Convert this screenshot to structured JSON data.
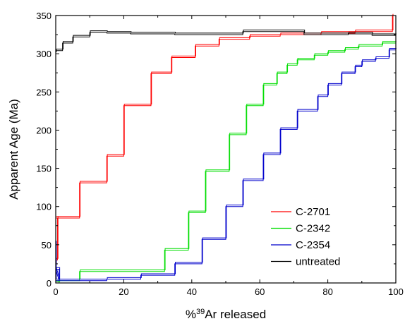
{
  "chart_data": {
    "type": "line",
    "title": "",
    "xlabel": {
      "prefix": "%",
      "sup": "39",
      "suffix": "Ar released"
    },
    "ylabel": "Apparent Age (Ma)",
    "xlim": [
      0,
      100
    ],
    "ylim": [
      0,
      350
    ],
    "xticks": [
      0,
      20,
      40,
      60,
      80,
      100
    ],
    "yticks": [
      0,
      50,
      100,
      150,
      200,
      250,
      300,
      350
    ],
    "grid": false,
    "legend_position": "bottom-right",
    "series": [
      {
        "name": "C-2701",
        "color": "#ff0000",
        "line_style": "step",
        "points": [
          [
            0,
            85
          ],
          [
            1,
            85
          ],
          [
            1,
            85
          ],
          [
            7,
            85
          ],
          [
            7,
            131
          ],
          [
            15,
            131
          ],
          [
            15,
            166
          ],
          [
            20,
            166
          ],
          [
            20,
            232
          ],
          [
            28,
            232
          ],
          [
            28,
            274
          ],
          [
            34,
            274
          ],
          [
            34,
            295
          ],
          [
            41,
            295
          ],
          [
            41,
            310
          ],
          [
            48,
            310
          ],
          [
            48,
            319
          ],
          [
            57,
            319
          ],
          [
            57,
            323
          ],
          [
            66,
            323
          ],
          [
            66,
            325
          ],
          [
            78,
            325
          ],
          [
            78,
            327
          ],
          [
            88,
            327
          ],
          [
            88,
            329
          ],
          [
            99,
            329
          ],
          [
            99,
            350
          ]
        ],
        "start_segment": [
          [
            0,
            23
          ],
          [
            0,
            30
          ],
          [
            0.5,
            30
          ],
          [
            0.5,
            85
          ]
        ]
      },
      {
        "name": "C-2342",
        "color": "#00dd00",
        "line_style": "step",
        "points": [
          [
            0,
            3
          ],
          [
            1,
            3
          ],
          [
            1,
            3
          ],
          [
            7,
            3
          ],
          [
            7,
            15
          ],
          [
            32,
            15
          ],
          [
            32,
            43
          ],
          [
            39,
            43
          ],
          [
            39,
            92
          ],
          [
            44,
            92
          ],
          [
            44,
            146
          ],
          [
            51,
            146
          ],
          [
            51,
            194
          ],
          [
            56,
            194
          ],
          [
            56,
            232
          ],
          [
            61,
            232
          ],
          [
            61,
            259
          ],
          [
            65,
            259
          ],
          [
            65,
            274
          ],
          [
            68,
            274
          ],
          [
            68,
            285
          ],
          [
            71,
            285
          ],
          [
            71,
            292
          ],
          [
            76,
            292
          ],
          [
            76,
            298
          ],
          [
            80,
            298
          ],
          [
            80,
            302
          ],
          [
            85,
            302
          ],
          [
            85,
            306
          ],
          [
            89,
            306
          ],
          [
            89,
            310
          ],
          [
            96,
            310
          ],
          [
            96,
            314
          ],
          [
            100,
            314
          ]
        ],
        "start_segment": [
          [
            0,
            0
          ],
          [
            1,
            0
          ],
          [
            1,
            3
          ]
        ]
      },
      {
        "name": "C-2354",
        "color": "#0000cc",
        "line_style": "step",
        "points": [
          [
            0,
            18
          ],
          [
            1,
            18
          ],
          [
            1,
            3
          ],
          [
            15,
            3
          ],
          [
            15,
            5
          ],
          [
            25,
            5
          ],
          [
            25,
            10
          ],
          [
            35,
            10
          ],
          [
            35,
            25
          ],
          [
            43,
            25
          ],
          [
            43,
            57
          ],
          [
            50,
            57
          ],
          [
            50,
            100
          ],
          [
            55,
            100
          ],
          [
            55,
            134
          ],
          [
            61,
            134
          ],
          [
            61,
            168
          ],
          [
            66,
            168
          ],
          [
            66,
            201
          ],
          [
            71,
            201
          ],
          [
            71,
            225
          ],
          [
            77,
            225
          ],
          [
            77,
            244
          ],
          [
            80,
            244
          ],
          [
            80,
            259
          ],
          [
            84,
            259
          ],
          [
            84,
            274
          ],
          [
            88,
            274
          ],
          [
            88,
            283
          ],
          [
            90,
            283
          ],
          [
            90,
            290
          ],
          [
            94,
            290
          ],
          [
            94,
            294
          ],
          [
            98,
            294
          ],
          [
            98,
            305
          ],
          [
            100,
            305
          ]
        ],
        "start_segment": [
          [
            0,
            53
          ],
          [
            0,
            3
          ],
          [
            1,
            3
          ]
        ]
      },
      {
        "name": "untreated",
        "color": "#000000",
        "line_style": "step",
        "points": [
          [
            0,
            304
          ],
          [
            2,
            304
          ],
          [
            2,
            314
          ],
          [
            5,
            314
          ],
          [
            5,
            322
          ],
          [
            10,
            322
          ],
          [
            10,
            328
          ],
          [
            15,
            328
          ],
          [
            15,
            327
          ],
          [
            22,
            327
          ],
          [
            22,
            326
          ],
          [
            35,
            326
          ],
          [
            35,
            325
          ],
          [
            55,
            325
          ],
          [
            55,
            329
          ],
          [
            73,
            329
          ],
          [
            73,
            325
          ],
          [
            86,
            325
          ],
          [
            86,
            326
          ],
          [
            93,
            326
          ],
          [
            93,
            324
          ],
          [
            100,
            324
          ]
        ],
        "start_segment": [
          [
            0,
            300
          ],
          [
            0,
            304
          ]
        ]
      }
    ]
  }
}
